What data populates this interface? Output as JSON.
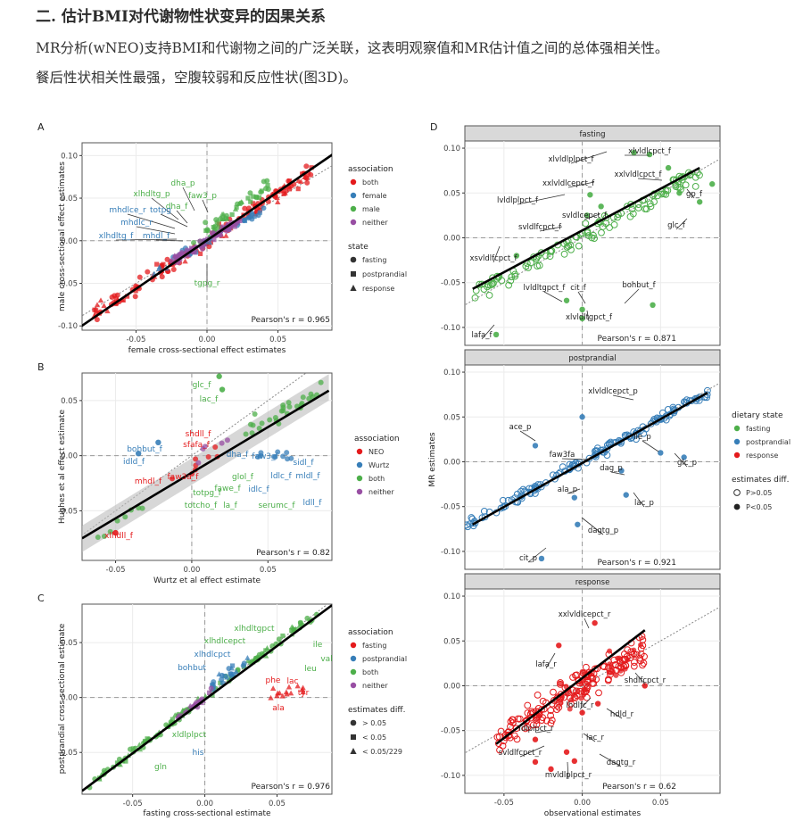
{
  "heading": "二. 估计BMI对代谢物性状变异的因果关系",
  "paragraph": [
    "MR分析(wNEO)支持BMI和代谢物之间的广泛关联，这表明观察值和MR估计值之间的总体强相关性。",
    "餐后性状相关性最强，空腹较弱和反应性状(图3D)。"
  ],
  "colors": {
    "red": "#e41a1c",
    "blue": "#377eb8",
    "green": "#4daf4a",
    "purple": "#984ea3",
    "strip": "#d9d9d9"
  },
  "panels": {
    "A": {
      "letter": "A",
      "xlabel": "female cross-sectional effect estimates",
      "ylabel": "male cross-sectional effect estimates",
      "pearson": "Pearson's r = 0.965",
      "xticks": [
        "-0.05",
        "0.00",
        "0.05"
      ],
      "yticks": [
        "0.10",
        "0.05",
        "0.00",
        "-0.05",
        "-0.10"
      ],
      "labels": [
        "dha_p",
        "faw3_p",
        "xlhdltg_p",
        "dha_f",
        "totpg",
        "mhdlce_r",
        "mhdlc_r",
        "xlhdltg_f",
        "mhdl_f",
        "tgpg_r"
      ],
      "legend": {
        "title1": "association",
        "items": [
          "both",
          "female",
          "male",
          "neither"
        ],
        "title2": "state",
        "items2": [
          "fasting",
          "postprandial",
          "response"
        ]
      }
    },
    "B": {
      "letter": "B",
      "xlabel": "Wurtz et al effect estimate",
      "ylabel": "Hughes et al effect estimate",
      "pearson": "Pearson's r = 0.82",
      "xticks": [
        "-0.05",
        "0.00",
        "0.05"
      ],
      "yticks": [
        "0.05",
        "0.00",
        "-0.05"
      ],
      "labels": [
        "glc_f",
        "lac_f",
        "shdll_f",
        "sfafa_f",
        "bohbut_f",
        "idld_f",
        "dha_f",
        "faw3_f",
        "sidl_f",
        "ldlc_f",
        "mldl_f",
        "idlc_f",
        "ldll_f",
        "mhdl_f",
        "faw3a_f",
        "glol_f",
        "totpg_f",
        "fawe_f",
        "totcho_f",
        "la_f",
        "serumc_f",
        "xlhdll_f"
      ],
      "legend": {
        "title1": "association",
        "items": [
          "NEO",
          "Wurtz",
          "both",
          "neither"
        ]
      }
    },
    "C": {
      "letter": "C",
      "xlabel": "fasting cross-sectional estimate",
      "ylabel": "postprandial cross-sectional estimate",
      "pearson": "Pearson's r = 0.976",
      "xticks": [
        "-0.05",
        "0.00",
        "0.05"
      ],
      "yticks": [
        "0.05",
        "0.00",
        "-0.05"
      ],
      "labels": [
        "xlhdltgpct",
        "xlhdlcepct",
        "xlhdlcpct",
        "bohbut",
        "ile",
        "val",
        "leu",
        "phe",
        "lac",
        "tyr",
        "ala",
        "xldlplpct",
        "his",
        "gln"
      ],
      "legend": {
        "title1": "association",
        "items": [
          "fasting",
          "postprandial",
          "both",
          "neither"
        ],
        "title2": "estimates diff.",
        "items2": [
          "> 0.05",
          "< 0.05",
          "< 0.05/229"
        ]
      }
    },
    "D": {
      "letter": "D",
      "xlabel": "observational estimates",
      "ylabel": "MR estimates",
      "xticks": [
        "-0.05",
        "0.00",
        "0.05"
      ],
      "yticks": [
        "0.10",
        "0.05",
        "0.00",
        "-0.05",
        "-0.10"
      ],
      "facets": [
        {
          "strip": "fasting",
          "pearson": "Pearson's r = 0.871",
          "labels": [
            "xlvldlplpct_f",
            "xlvldlcpct_f",
            "xxlvldlcpct_f",
            "xxlvldlcepct_f",
            "lvldlplpct_f",
            "gp_f",
            "svldlcepct_f",
            "svldlfcpct_f",
            "glc_f",
            "xsvldlfcpct_f",
            "lvldltgpct_f",
            "cit_f",
            "bohbut_f",
            "xlvldltgpct_f",
            "lafa_f"
          ]
        },
        {
          "strip": "postprandial",
          "pearson": "Pearson's r = 0.921",
          "labels": [
            "xlvldlcepct_p",
            "ace_p",
            "ile_p",
            "faw3fa",
            "glc_p",
            "dag_p",
            "ala_p",
            "lac_p",
            "dagtg_p",
            "cit_p"
          ]
        },
        {
          "strip": "response",
          "pearson": "Pearson's r = 0.62",
          "labels": [
            "xxlvldlcepct_r",
            "lafa_r",
            "shdlfcpct_r",
            "lhdlfc_r",
            "hdld_r",
            "ldlplpct_r",
            "lac_r",
            "svldlfcpct_r",
            "dagtg_r",
            "mvldlplpct_r"
          ]
        }
      ],
      "legend": {
        "title1": "dietary state",
        "items": [
          "fasting",
          "postprandial",
          "response"
        ],
        "title2": "estimates diff.",
        "items2": [
          "P>0.05",
          "P<0.05"
        ]
      }
    }
  }
}
